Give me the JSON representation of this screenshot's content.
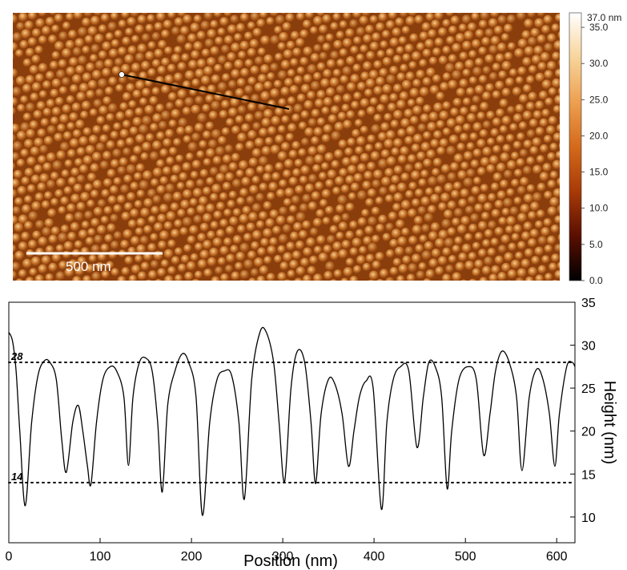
{
  "afm_image": {
    "scale_bar_label": "500 nm",
    "colors": {
      "background": "#8a3e0c",
      "grain_base": "#c7742a",
      "grain_highlight": "#f6cd8f",
      "profile_line": "#000000",
      "profile_start_marker": "#ffffff"
    }
  },
  "colorbar": {
    "max_label": "37.0 nm",
    "tick_labels": [
      "35.0",
      "30.0",
      "25.0",
      "20.0",
      "15.0",
      "10.0",
      "5.0",
      "0.0"
    ],
    "tick_values": [
      35,
      30,
      25,
      20,
      15,
      10,
      5,
      0
    ],
    "range": [
      0,
      37
    ],
    "colors": [
      "#000000",
      "#5a0f00",
      "#a83a07",
      "#d46a1a",
      "#eda050",
      "#f8d49a",
      "#ffffff"
    ]
  },
  "chart_data": {
    "type": "line",
    "xlabel": "Position (nm)",
    "ylabel": "Height (nm)",
    "xlim": [
      0,
      620
    ],
    "ylim": [
      7,
      35
    ],
    "x_ticks": [
      0,
      100,
      200,
      300,
      400,
      500,
      600
    ],
    "x_tick_labels": [
      "0",
      "100",
      "200",
      "300",
      "400",
      "500",
      "600"
    ],
    "y_ticks": [
      10,
      15,
      20,
      25,
      30,
      35
    ],
    "y_tick_labels": [
      "10",
      "15",
      "20",
      "25",
      "30",
      "35"
    ],
    "reference_lines": [
      {
        "value": 28,
        "label": "28",
        "style": "dotted"
      },
      {
        "value": 14,
        "label": "14",
        "style": "dotted"
      }
    ],
    "grid": false,
    "series": [
      {
        "values_x": [
          0,
          4,
          8,
          12,
          18,
          25,
          32,
          39,
          45,
          52,
          58,
          63,
          70,
          76,
          81,
          86,
          90,
          96,
          103,
          111,
          118,
          126,
          131,
          136,
          143,
          150,
          157,
          163,
          168,
          174,
          182,
          190,
          197,
          205,
          212,
          220,
          228,
          236,
          244,
          252,
          258,
          266,
          275,
          282,
          290,
          296,
          302,
          309,
          316,
          324,
          331,
          336,
          342,
          350,
          357,
          365,
          372,
          378,
          384,
          391,
          399,
          408,
          414,
          421,
          429,
          438,
          447,
          454,
          460,
          467,
          474,
          480,
          485,
          493,
          503,
          512,
          520,
          527,
          533,
          540,
          548,
          556,
          562,
          570,
          578,
          585,
          592,
          598,
          603,
          611,
          617,
          620
        ],
        "values_y": [
          31.5,
          30.5,
          27,
          20,
          11.3,
          21,
          26.5,
          28.2,
          28,
          26,
          19,
          15.2,
          21,
          23,
          20,
          16,
          13.8,
          21,
          26,
          27.5,
          27,
          24,
          16,
          24,
          28,
          28.5,
          27,
          21,
          12.9,
          23,
          27,
          29,
          28,
          24,
          10.2,
          21,
          26,
          27,
          26.5,
          21,
          12.1,
          26,
          31.5,
          31.5,
          28,
          21,
          14.1,
          25,
          29.3,
          28,
          21,
          13.9,
          22,
          26,
          25.5,
          22,
          15.9,
          20,
          24,
          25.8,
          25,
          10.9,
          21,
          26,
          27.5,
          27,
          18.1,
          24,
          28,
          27.5,
          24,
          13.3,
          20,
          26,
          27.5,
          26,
          17.2,
          22,
          27,
          29.3,
          28,
          24,
          15.4,
          24,
          27.2,
          26,
          22,
          15.9,
          22,
          27.5,
          28,
          27.5
        ]
      }
    ]
  }
}
